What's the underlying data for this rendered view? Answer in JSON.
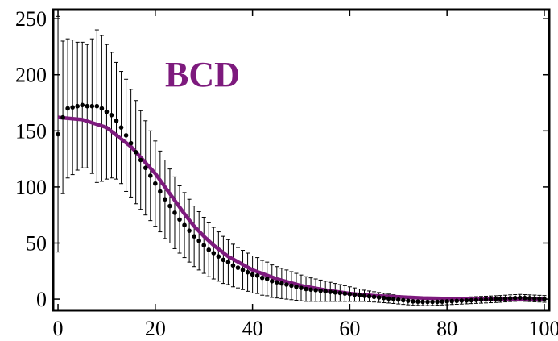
{
  "chart_data": {
    "type": "scatter",
    "title": "",
    "xlabel": "",
    "ylabel": "",
    "xlim": [
      -1,
      101
    ],
    "ylim": [
      -10,
      258
    ],
    "xticks": [
      0,
      20,
      40,
      60,
      80,
      100
    ],
    "yticks": [
      0,
      50,
      100,
      150,
      200,
      250
    ],
    "grid": false,
    "annotation": {
      "text": "BCD",
      "color": "#7d1a7d"
    },
    "series": [
      {
        "kind": "points_with_error_bars",
        "color": "#000000",
        "x": [
          0,
          1,
          2,
          3,
          4,
          5,
          6,
          7,
          8,
          9,
          10,
          11,
          12,
          13,
          14,
          15,
          16,
          17,
          18,
          19,
          20,
          21,
          22,
          23,
          24,
          25,
          26,
          27,
          28,
          29,
          30,
          31,
          32,
          33,
          34,
          35,
          36,
          37,
          38,
          39,
          40,
          41,
          42,
          43,
          44,
          45,
          46,
          47,
          48,
          49,
          50,
          51,
          52,
          53,
          54,
          55,
          56,
          57,
          58,
          59,
          60,
          61,
          62,
          63,
          64,
          65,
          66,
          67,
          68,
          69,
          70,
          71,
          72,
          73,
          74,
          75,
          76,
          77,
          78,
          79,
          80,
          81,
          82,
          83,
          84,
          85,
          86,
          87,
          88,
          89,
          90,
          91,
          92,
          93,
          94,
          95,
          96,
          97,
          98,
          99,
          100
        ],
        "y": [
          147,
          162,
          170,
          171,
          172,
          173,
          172,
          172,
          172,
          170,
          167,
          164,
          159,
          153,
          146,
          139,
          131,
          124,
          117,
          110,
          103,
          96,
          89,
          83,
          77,
          71,
          66,
          61,
          56,
          52,
          48,
          44,
          41,
          38,
          35,
          33,
          30,
          28,
          26,
          24,
          22,
          21,
          19,
          18,
          16,
          15,
          14,
          13,
          12,
          11,
          10,
          9,
          8.5,
          8,
          7.5,
          7,
          6.5,
          6,
          5.5,
          5,
          4.5,
          4,
          3.5,
          3,
          2.5,
          2,
          1.5,
          1,
          0.5,
          0,
          -0.5,
          -1,
          -1.5,
          -2,
          -2.2,
          -2.4,
          -2.5,
          -2.5,
          -2.4,
          -2.2,
          -2,
          -1.8,
          -1.6,
          -1.4,
          -1.2,
          -1,
          -0.8,
          -0.6,
          -0.4,
          -0.2,
          0,
          0.2,
          0.5,
          0.8,
          1,
          1.2,
          1,
          0.8,
          0.6,
          0.4,
          0.2
        ],
        "err": [
          105,
          68,
          62,
          60,
          57,
          56,
          55,
          60,
          68,
          65,
          60,
          56,
          52,
          50,
          50,
          48,
          46,
          44,
          42,
          40,
          38,
          36,
          35,
          33,
          32,
          30,
          29,
          28,
          27,
          26,
          25,
          24,
          23,
          22,
          21,
          20,
          19,
          18,
          17.5,
          17,
          16.5,
          16,
          15.5,
          15,
          14.5,
          14,
          13.5,
          13,
          12.5,
          12,
          11.5,
          11,
          10.5,
          10,
          9.5,
          9,
          8.5,
          8,
          7.5,
          7,
          6.5,
          6,
          5.5,
          5,
          4.8,
          4.6,
          4.4,
          4.2,
          4,
          3.9,
          3.8,
          3.7,
          3.6,
          3.5,
          3.4,
          3.3,
          3.2,
          3.1,
          3,
          3,
          3,
          3,
          3,
          3,
          3,
          3,
          3,
          3,
          3,
          3,
          3,
          3,
          3,
          3,
          3,
          3,
          3,
          3,
          3,
          3,
          3
        ]
      },
      {
        "kind": "line",
        "color": "#7d1a7d",
        "x": [
          0,
          5,
          10,
          15,
          20,
          22,
          24,
          26,
          28,
          30,
          32,
          35,
          40,
          45,
          50,
          55,
          60,
          65,
          70,
          75,
          80,
          85,
          90,
          95,
          100
        ],
        "y": [
          162,
          160,
          153,
          136,
          112,
          100,
          88,
          76,
          65,
          56,
          48,
          38,
          26,
          18,
          12,
          8,
          5,
          3,
          2,
          1,
          0.5,
          0.3,
          0.2,
          0.1,
          0
        ]
      }
    ]
  }
}
